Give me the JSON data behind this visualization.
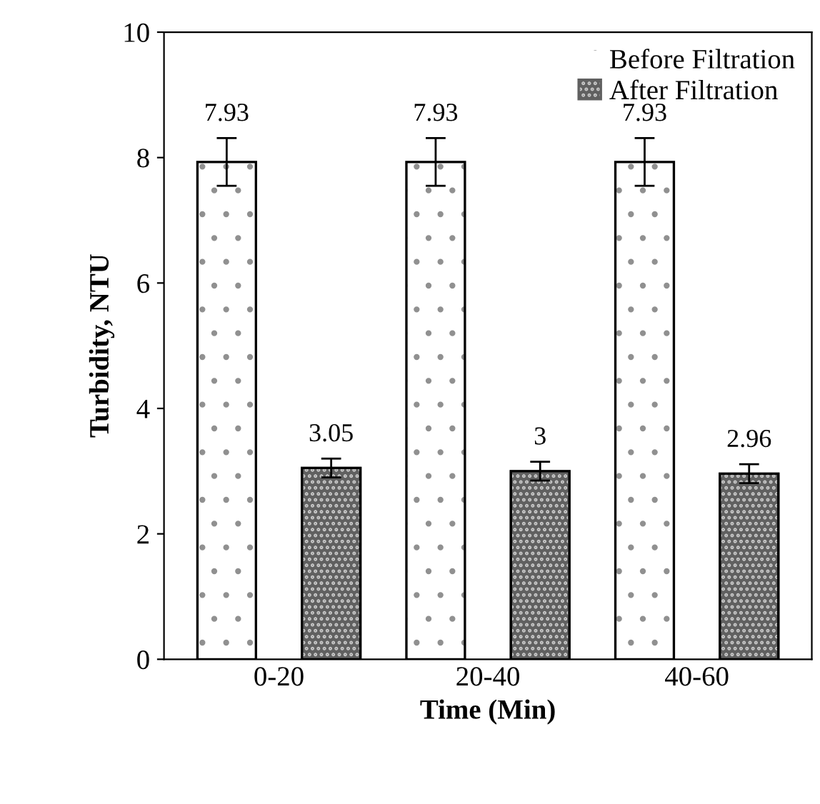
{
  "chart_data": {
    "type": "bar",
    "xlabel": "Time (Min)",
    "ylabel": "Turbidity, NTU",
    "categories": [
      "0-20",
      "20-40",
      "40-60"
    ],
    "series": [
      {
        "name": "Before Filtration",
        "color": "#ffffff",
        "values": [
          7.93,
          7.93,
          7.93
        ],
        "errors": [
          0.38,
          0.38,
          0.38
        ]
      },
      {
        "name": "After Filtration",
        "color": "#606060",
        "values": [
          3.05,
          3,
          2.96
        ],
        "errors": [
          0.15,
          0.15,
          0.15
        ]
      }
    ],
    "ylim": [
      0,
      10
    ],
    "yticks": [
      0,
      2,
      4,
      6,
      8,
      10
    ],
    "data_labels": true,
    "legend": "top right",
    "grid": false
  }
}
